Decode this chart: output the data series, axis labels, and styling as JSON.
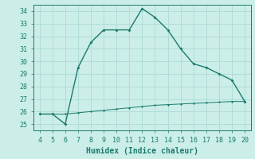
{
  "x": [
    4,
    5,
    6,
    7,
    8,
    9,
    10,
    11,
    12,
    13,
    14,
    15,
    16,
    17,
    18,
    19,
    20
  ],
  "y_main": [
    25.8,
    25.8,
    25.0,
    29.5,
    31.5,
    32.5,
    32.5,
    32.5,
    34.2,
    33.5,
    32.5,
    31.0,
    29.8,
    29.5,
    29.0,
    28.5,
    26.8
  ],
  "y_flat": [
    25.8,
    25.8,
    25.8,
    25.9,
    26.0,
    26.1,
    26.2,
    26.3,
    26.4,
    26.5,
    26.55,
    26.6,
    26.65,
    26.7,
    26.75,
    26.8,
    26.8
  ],
  "line_color": "#1a7a6e",
  "bg_color": "#cceee8",
  "grid_color": "#b0ddd8",
  "xlabel": "Humidex (Indice chaleur)",
  "xlim": [
    3.5,
    20.5
  ],
  "ylim": [
    24.5,
    34.5
  ],
  "yticks": [
    25,
    26,
    27,
    28,
    29,
    30,
    31,
    32,
    33,
    34
  ],
  "xticks": [
    4,
    5,
    6,
    7,
    8,
    9,
    10,
    11,
    12,
    13,
    14,
    15,
    16,
    17,
    18,
    19,
    20
  ],
  "tick_fontsize": 6,
  "xlabel_fontsize": 7
}
